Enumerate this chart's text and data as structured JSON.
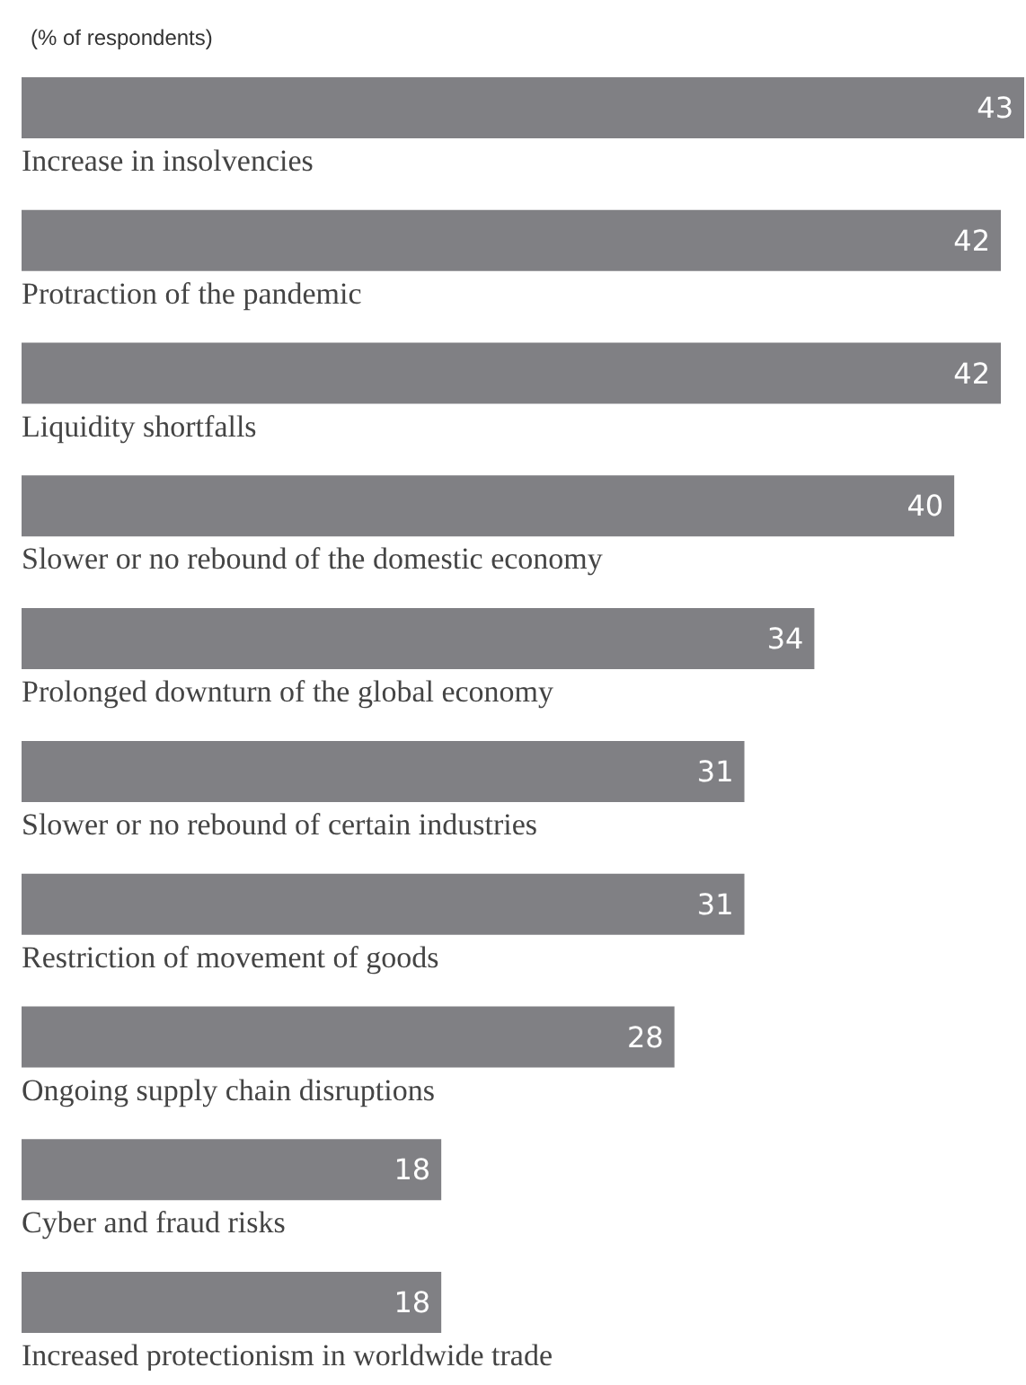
{
  "chart_data": {
    "type": "bar",
    "orientation": "horizontal",
    "title": "(% of respondents)",
    "categories": [
      "Increase in insolvencies",
      "Protraction of the pandemic",
      "Liquidity shortfalls",
      "Slower or no rebound of the domestic economy",
      "Prolonged downturn of the global economy",
      "Slower or no rebound of certain industries",
      "Restriction of movement of goods",
      "Ongoing supply chain disruptions",
      "Cyber and fraud risks",
      "Increased protectionism in worldwide trade"
    ],
    "values": [
      43,
      42,
      42,
      40,
      34,
      31,
      31,
      28,
      18,
      18
    ],
    "color": "#808084",
    "data_labels": true
  }
}
